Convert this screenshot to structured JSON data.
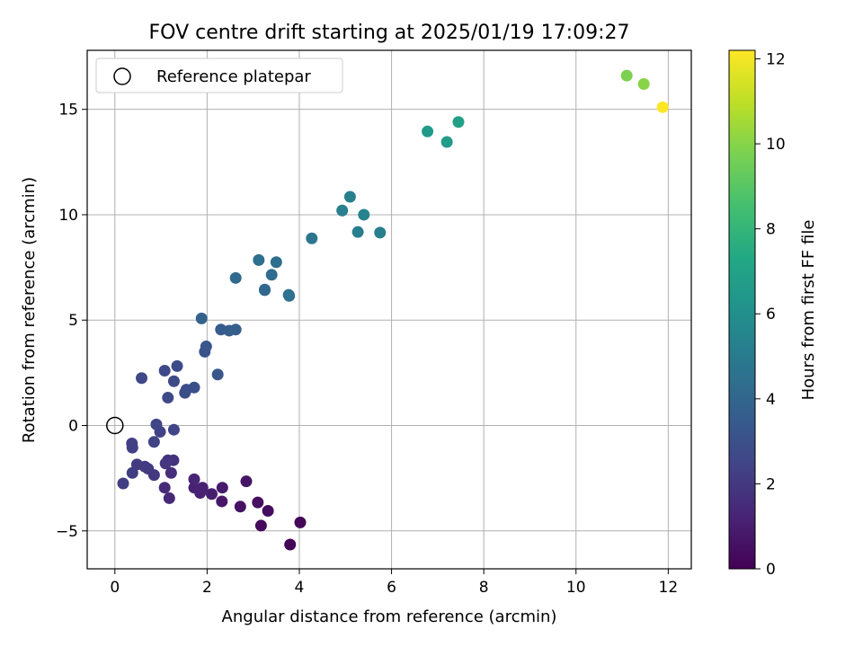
{
  "chart_data": {
    "type": "scatter",
    "title": "FOV centre drift starting at 2025/01/19 17:09:27",
    "xlabel": "Angular distance from reference (arcmin)",
    "ylabel": "Rotation from reference (arcmin)",
    "xlim": [
      -0.6,
      12.5
    ],
    "ylim": [
      -6.8,
      17.8
    ],
    "xticks": [
      0,
      2,
      4,
      6,
      8,
      10,
      12
    ],
    "yticks": [
      -5,
      0,
      5,
      10,
      15
    ],
    "grid": true,
    "legend": {
      "position": "top-left",
      "label": "Reference platepar"
    },
    "reference_point": {
      "x": 0,
      "y": 0
    },
    "colorbar": {
      "label": "Hours from first FF file",
      "range": [
        0,
        12.2
      ],
      "ticks": [
        0,
        2,
        4,
        6,
        8,
        10,
        12
      ],
      "colormap": "viridis"
    },
    "points": [
      {
        "x": 3.8,
        "y": -5.65,
        "c": 0.1
      },
      {
        "x": 4.02,
        "y": -4.6,
        "c": 0.2
      },
      {
        "x": 3.17,
        "y": -4.75,
        "c": 0.3
      },
      {
        "x": 3.32,
        "y": -4.05,
        "c": 0.4
      },
      {
        "x": 3.1,
        "y": -3.65,
        "c": 0.5
      },
      {
        "x": 2.72,
        "y": -3.85,
        "c": 0.6
      },
      {
        "x": 2.85,
        "y": -2.65,
        "c": 0.7
      },
      {
        "x": 2.32,
        "y": -3.6,
        "c": 0.8
      },
      {
        "x": 2.33,
        "y": -2.95,
        "c": 0.9
      },
      {
        "x": 2.1,
        "y": -3.25,
        "c": 1.0
      },
      {
        "x": 1.85,
        "y": -3.2,
        "c": 1.1
      },
      {
        "x": 1.9,
        "y": -2.95,
        "c": 1.1
      },
      {
        "x": 1.72,
        "y": -2.95,
        "c": 1.2
      },
      {
        "x": 1.72,
        "y": -2.55,
        "c": 1.3
      },
      {
        "x": 1.18,
        "y": -3.45,
        "c": 1.4
      },
      {
        "x": 1.08,
        "y": -2.95,
        "c": 1.5
      },
      {
        "x": 1.22,
        "y": -2.25,
        "c": 1.6
      },
      {
        "x": 1.27,
        "y": -1.65,
        "c": 1.7
      },
      {
        "x": 1.15,
        "y": -1.65,
        "c": 1.8
      },
      {
        "x": 1.1,
        "y": -1.8,
        "c": 1.9
      },
      {
        "x": 0.85,
        "y": -2.35,
        "c": 2.0
      },
      {
        "x": 0.72,
        "y": -2.05,
        "c": 2.0
      },
      {
        "x": 0.65,
        "y": -1.95,
        "c": 2.1
      },
      {
        "x": 0.48,
        "y": -1.85,
        "c": 2.1
      },
      {
        "x": 0.38,
        "y": -2.25,
        "c": 2.2
      },
      {
        "x": 0.18,
        "y": -2.75,
        "c": 2.2
      },
      {
        "x": 0.38,
        "y": -1.05,
        "c": 2.3
      },
      {
        "x": 0.37,
        "y": -0.85,
        "c": 2.3
      },
      {
        "x": 0.85,
        "y": -0.78,
        "c": 2.4
      },
      {
        "x": 0.98,
        "y": -0.3,
        "c": 2.4
      },
      {
        "x": 0.9,
        "y": 0.05,
        "c": 2.5
      },
      {
        "x": 1.28,
        "y": -0.2,
        "c": 2.5
      },
      {
        "x": 0.58,
        "y": 2.25,
        "c": 2.6
      },
      {
        "x": 1.08,
        "y": 2.6,
        "c": 2.6
      },
      {
        "x": 1.15,
        "y": 1.32,
        "c": 2.7
      },
      {
        "x": 1.28,
        "y": 2.1,
        "c": 2.7
      },
      {
        "x": 1.35,
        "y": 2.82,
        "c": 2.8
      },
      {
        "x": 1.52,
        "y": 1.55,
        "c": 2.9
      },
      {
        "x": 1.55,
        "y": 1.7,
        "c": 2.9
      },
      {
        "x": 1.72,
        "y": 1.8,
        "c": 3.0
      },
      {
        "x": 1.95,
        "y": 3.5,
        "c": 3.1
      },
      {
        "x": 1.98,
        "y": 3.75,
        "c": 3.2
      },
      {
        "x": 2.23,
        "y": 2.42,
        "c": 3.3
      },
      {
        "x": 2.3,
        "y": 4.55,
        "c": 3.5
      },
      {
        "x": 2.48,
        "y": 4.5,
        "c": 3.6
      },
      {
        "x": 2.62,
        "y": 4.55,
        "c": 3.7
      },
      {
        "x": 1.88,
        "y": 5.08,
        "c": 3.8
      },
      {
        "x": 3.25,
        "y": 6.42,
        "c": 4.0
      },
      {
        "x": 3.25,
        "y": 6.45,
        "c": 4.1
      },
      {
        "x": 2.62,
        "y": 7.0,
        "c": 4.2
      },
      {
        "x": 3.4,
        "y": 7.15,
        "c": 4.3
      },
      {
        "x": 3.12,
        "y": 7.85,
        "c": 4.4
      },
      {
        "x": 3.5,
        "y": 7.75,
        "c": 4.4
      },
      {
        "x": 3.78,
        "y": 6.15,
        "c": 4.5
      },
      {
        "x": 3.77,
        "y": 6.2,
        "c": 4.6
      },
      {
        "x": 4.27,
        "y": 8.88,
        "c": 4.8
      },
      {
        "x": 5.27,
        "y": 9.18,
        "c": 5.1
      },
      {
        "x": 5.75,
        "y": 9.15,
        "c": 5.2
      },
      {
        "x": 4.93,
        "y": 10.2,
        "c": 5.2
      },
      {
        "x": 5.1,
        "y": 10.85,
        "c": 5.3
      },
      {
        "x": 5.4,
        "y": 10.0,
        "c": 5.4
      },
      {
        "x": 6.78,
        "y": 13.95,
        "c": 6.6
      },
      {
        "x": 7.2,
        "y": 13.45,
        "c": 6.7
      },
      {
        "x": 7.45,
        "y": 14.4,
        "c": 6.9
      },
      {
        "x": 11.1,
        "y": 16.6,
        "c": 9.8
      },
      {
        "x": 11.47,
        "y": 16.2,
        "c": 10.0
      },
      {
        "x": 11.88,
        "y": 15.1,
        "c": 12.2
      }
    ]
  }
}
